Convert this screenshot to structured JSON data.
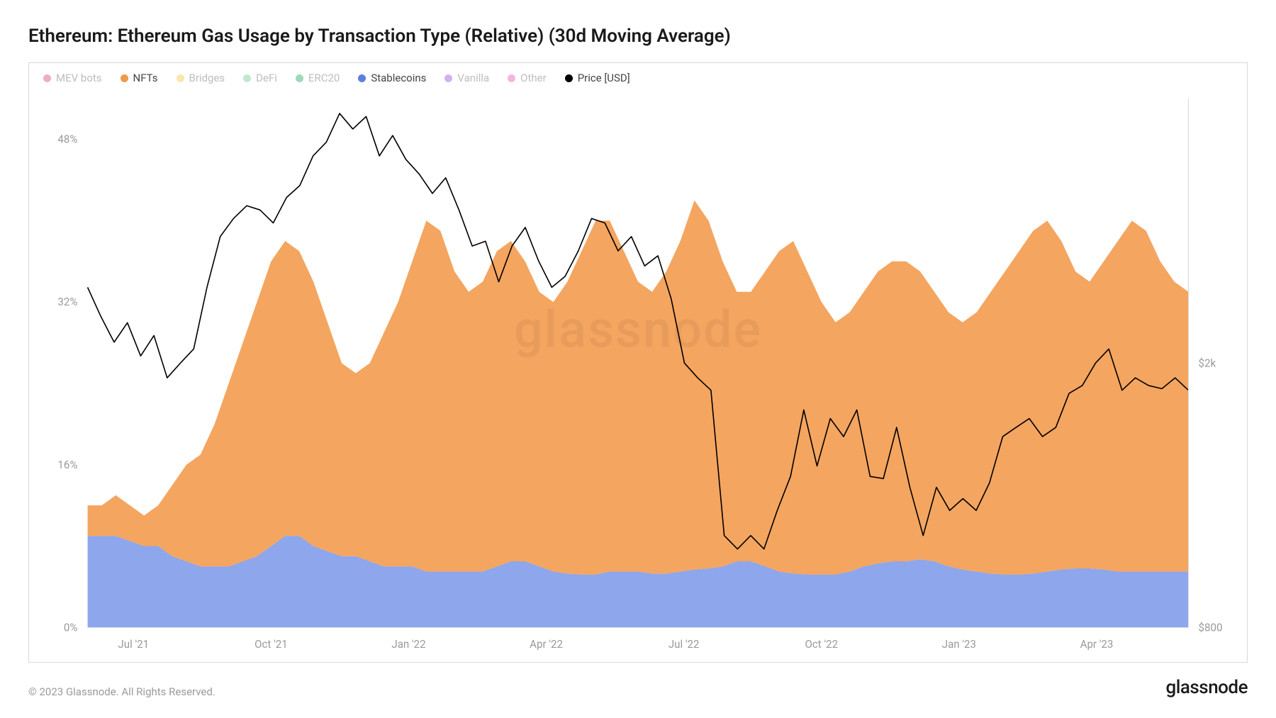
{
  "title": "Ethereum: Ethereum Gas Usage by Transaction Type (Relative) (30d Moving Average)",
  "watermark": "glassnode",
  "copyright": "© 2023 Glassnode. All Rights Reserved.",
  "brand": "glassnode",
  "legend": [
    {
      "label": "MEV bots",
      "color": "#d94d6a",
      "active": false
    },
    {
      "label": "NFTs",
      "color": "#f2994a",
      "active": true
    },
    {
      "label": "Bridges",
      "color": "#f2c94c",
      "active": false
    },
    {
      "label": "DeFi",
      "color": "#6fcf97",
      "active": false
    },
    {
      "label": "ERC20",
      "color": "#27ae60",
      "active": false
    },
    {
      "label": "Stablecoins",
      "color": "#5b7ee0",
      "active": true
    },
    {
      "label": "Vanilla",
      "color": "#9b51e0",
      "active": false
    },
    {
      "label": "Other",
      "color": "#e858b6",
      "active": false
    },
    {
      "label": "Price [USD]",
      "color": "#000000",
      "active": true
    }
  ],
  "chart": {
    "type": "stacked-area-with-line",
    "background_color": "#ffffff",
    "border_color": "#d8d8d8",
    "left_axis": {
      "min": 0,
      "max": 52,
      "ticks": [
        0,
        16,
        32,
        48
      ],
      "tick_labels": [
        "0%",
        "16%",
        "32%",
        "48%"
      ],
      "label_fontsize": 15,
      "label_color": "#9a9a9a"
    },
    "right_axis": {
      "min_log": 800,
      "max_log": 5000,
      "ticks": [
        800,
        2000
      ],
      "tick_labels": [
        "$800",
        "$2k"
      ],
      "label_fontsize": 15,
      "label_color": "#9a9a9a",
      "scale": "log"
    },
    "x_axis": {
      "ticks": [
        1,
        4,
        7,
        10,
        13,
        16,
        19,
        22
      ],
      "tick_labels": [
        "Jul '21",
        "Oct '21",
        "Jan '22",
        "Apr '22",
        "Jul '22",
        "Oct '22",
        "Jan '23",
        "Apr '23"
      ],
      "label_fontsize": 15,
      "label_color": "#9a9a9a"
    },
    "series": {
      "stablecoins": {
        "color": "#7a96e8",
        "fill_opacity": 0.85,
        "values": [
          9,
          9,
          9,
          8.5,
          8,
          8,
          7,
          6.5,
          6,
          6,
          6,
          6.5,
          7,
          8,
          9,
          9,
          8,
          7.5,
          7,
          7,
          6.5,
          6,
          6,
          6,
          5.5,
          5.5,
          5.5,
          5.5,
          5.5,
          6,
          6.5,
          6.5,
          6,
          5.5,
          5.3,
          5.2,
          5.2,
          5.5,
          5.5,
          5.5,
          5.3,
          5.3,
          5.5,
          5.7,
          5.8,
          6,
          6.5,
          6.5,
          6,
          5.5,
          5.3,
          5.2,
          5.2,
          5.2,
          5.5,
          6,
          6.3,
          6.5,
          6.5,
          6.7,
          6.5,
          6,
          5.7,
          5.5,
          5.3,
          5.2,
          5.2,
          5.3,
          5.5,
          5.7,
          5.8,
          5.8,
          5.7,
          5.5,
          5.5,
          5.5,
          5.5,
          5.5,
          5.5
        ]
      },
      "nfts": {
        "color": "#f2994a",
        "fill_opacity": 0.88,
        "values_cumulative": [
          12,
          12,
          13,
          12,
          11,
          12,
          14,
          16,
          17,
          20,
          24,
          28,
          32,
          36,
          38,
          37,
          34,
          30,
          26,
          25,
          26,
          29,
          32,
          36,
          40,
          39,
          35,
          33,
          34,
          37,
          38,
          36,
          33,
          32,
          34,
          37,
          40,
          40,
          37,
          34,
          33,
          35,
          38,
          42,
          40,
          36,
          33,
          33,
          35,
          37,
          38,
          35,
          32,
          30,
          31,
          33,
          35,
          36,
          36,
          35,
          33,
          31,
          30,
          31,
          33,
          35,
          37,
          39,
          40,
          38,
          35,
          34,
          36,
          38,
          40,
          39,
          36,
          34,
          33
        ]
      },
      "price": {
        "color": "#000000",
        "stroke_width": 1.6,
        "values_usd": [
          2600,
          2350,
          2150,
          2300,
          2050,
          2200,
          1900,
          2000,
          2100,
          2600,
          3100,
          3300,
          3450,
          3400,
          3250,
          3550,
          3700,
          4100,
          4300,
          4750,
          4500,
          4700,
          4100,
          4400,
          4050,
          3850,
          3600,
          3800,
          3400,
          3000,
          3050,
          2650,
          3000,
          3200,
          2850,
          2600,
          2700,
          2950,
          3300,
          3250,
          2950,
          3100,
          2800,
          2900,
          2500,
          2000,
          1900,
          1820,
          1100,
          1050,
          1100,
          1050,
          1200,
          1350,
          1700,
          1400,
          1650,
          1550,
          1700,
          1350,
          1340,
          1600,
          1300,
          1100,
          1300,
          1200,
          1250,
          1200,
          1320,
          1550,
          1600,
          1650,
          1550,
          1600,
          1800,
          1850,
          2000,
          2100,
          1820,
          1900,
          1850,
          1830,
          1900,
          1820
        ]
      }
    }
  }
}
